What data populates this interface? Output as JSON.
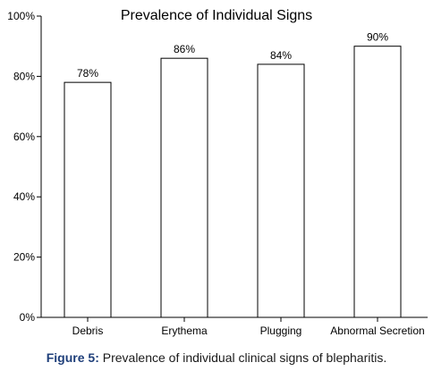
{
  "chart_data": {
    "type": "bar",
    "title": "Prevalence of Individual Signs",
    "xlabel": "",
    "ylabel": "",
    "categories": [
      "Debris",
      "Erythema",
      "Plugging",
      "Abnormal Secretion"
    ],
    "values": [
      78,
      86,
      84,
      90
    ],
    "value_labels": [
      "78%",
      "86%",
      "84%",
      "90%"
    ],
    "ylim": [
      0,
      100
    ],
    "yticks": [
      0,
      20,
      40,
      60,
      80,
      100
    ],
    "ytick_labels": [
      "0%",
      "20%",
      "40%",
      "60%",
      "80%",
      "100%"
    ],
    "grid": false,
    "legend": "none",
    "bar_fill": "#ffffff",
    "bar_stroke": "#000000"
  },
  "caption": {
    "label": "Figure 5:",
    "text": " Prevalence of individual clinical signs of blepharitis."
  },
  "colors": {
    "caption_label": "#1f3f7a",
    "axis": "#000000"
  }
}
